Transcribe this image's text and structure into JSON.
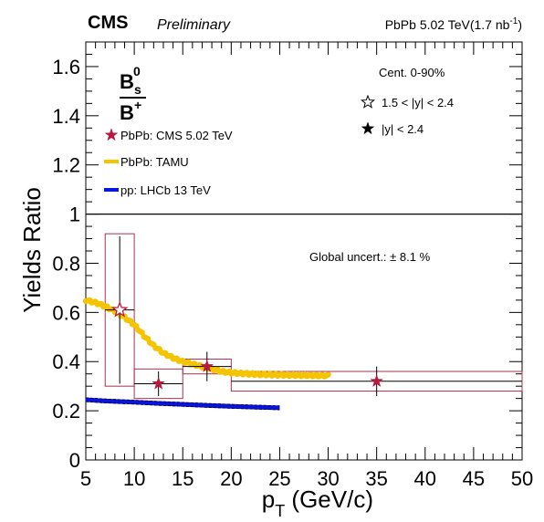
{
  "header": {
    "experiment": "CMS",
    "status": "Preliminary",
    "energy_prefix": "PbPb 5.02 TeV(1.7 nb",
    "energy_sup": "-1",
    "energy_suffix": ")"
  },
  "ratio_label": {
    "numerator_base": "B",
    "numerator_sub": "s",
    "numerator_sup": "0",
    "denominator_base": "B",
    "denominator_sup": "+"
  },
  "info": {
    "centrality": "Cent. 0-90%",
    "open_marker_label": "1.5 < |y| < 2.4",
    "filled_marker_label": "|y| < 2.4",
    "global_uncert": "Global uncert.: ± 8.1 %"
  },
  "colors": {
    "cms": "#b8193f",
    "tamu": "#f5c400",
    "lhcb": "#0a14e0",
    "syst_box": "#a8324f",
    "axis": "#000000"
  },
  "chart_data": {
    "type": "scatter",
    "xlabel_base": "p",
    "xlabel_sub": "T",
    "xlabel_suffix": " (GeV/c)",
    "ylabel": "Yields Ratio",
    "xlim": [
      5,
      50
    ],
    "ylim": [
      0,
      1.7
    ],
    "xticks": [
      "5",
      "10",
      "15",
      "20",
      "25",
      "30",
      "35",
      "40",
      "45",
      "50"
    ],
    "yticks": [
      "0",
      "0.2",
      "0.4",
      "0.6",
      "0.8",
      "1",
      "1.2",
      "1.4",
      "1.6"
    ],
    "reference_line": 1,
    "series": [
      {
        "name": "PbPb: CMS 5.02 TeV",
        "marker": "star",
        "points": [
          {
            "x": 8.5,
            "xlo": 7,
            "xhi": 10,
            "y": 0.61,
            "stat": 0.3,
            "syst": 0.31,
            "marker": "open"
          },
          {
            "x": 12.5,
            "xlo": 10,
            "xhi": 15,
            "y": 0.31,
            "stat": 0.05,
            "syst": 0.06,
            "marker": "filled"
          },
          {
            "x": 17.5,
            "xlo": 15,
            "xhi": 20,
            "y": 0.38,
            "stat": 0.06,
            "syst": 0.03,
            "marker": "filled"
          },
          {
            "x": 35,
            "xlo": 20,
            "xhi": 50,
            "y": 0.32,
            "stat": 0.06,
            "syst": 0.04,
            "marker": "filled"
          }
        ]
      },
      {
        "name": "PbPb: TAMU",
        "marker": "band",
        "points": [
          [
            5,
            0.65
          ],
          [
            6,
            0.64
          ],
          [
            7,
            0.625
          ],
          [
            8,
            0.605
          ],
          [
            9,
            0.58
          ],
          [
            10,
            0.55
          ],
          [
            11,
            0.505
          ],
          [
            12,
            0.465
          ],
          [
            13,
            0.435
          ],
          [
            14,
            0.415
          ],
          [
            15,
            0.4
          ],
          [
            16,
            0.39
          ],
          [
            17,
            0.38
          ],
          [
            18,
            0.37
          ],
          [
            19,
            0.36
          ],
          [
            20,
            0.355
          ],
          [
            21,
            0.352
          ],
          [
            22,
            0.35
          ],
          [
            23,
            0.348
          ],
          [
            24,
            0.347
          ],
          [
            25,
            0.346
          ],
          [
            26,
            0.345
          ],
          [
            27,
            0.344
          ],
          [
            28,
            0.344
          ],
          [
            29,
            0.343
          ],
          [
            30,
            0.343
          ]
        ]
      },
      {
        "name": "pp: LHCb 13 TeV",
        "marker": "band",
        "points": [
          [
            5,
            0.245
          ],
          [
            7,
            0.24
          ],
          [
            10,
            0.235
          ],
          [
            12.5,
            0.23
          ],
          [
            15,
            0.226
          ],
          [
            17.5,
            0.222
          ],
          [
            20,
            0.218
          ],
          [
            22.5,
            0.215
          ],
          [
            25,
            0.212
          ]
        ]
      }
    ]
  }
}
